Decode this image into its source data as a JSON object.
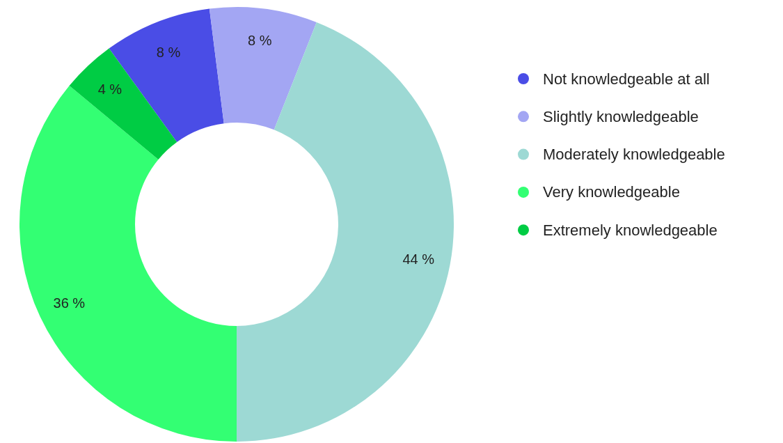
{
  "chart_data": {
    "type": "donut",
    "categories": [
      "Not knowledgeable at all",
      "Slightly knowledgeable",
      "Moderately knowledgeable",
      "Very knowledgeable",
      "Extremely knowledgeable"
    ],
    "values": [
      8,
      8,
      44,
      36,
      4
    ],
    "colors": [
      "#4a4de6",
      "#a3a6f3",
      "#9dd9d4",
      "#33ff73",
      "#00cc44"
    ],
    "value_labels": [
      "8 %",
      "8 %",
      "44 %",
      "36 %",
      "4 %"
    ],
    "legend": "right"
  }
}
